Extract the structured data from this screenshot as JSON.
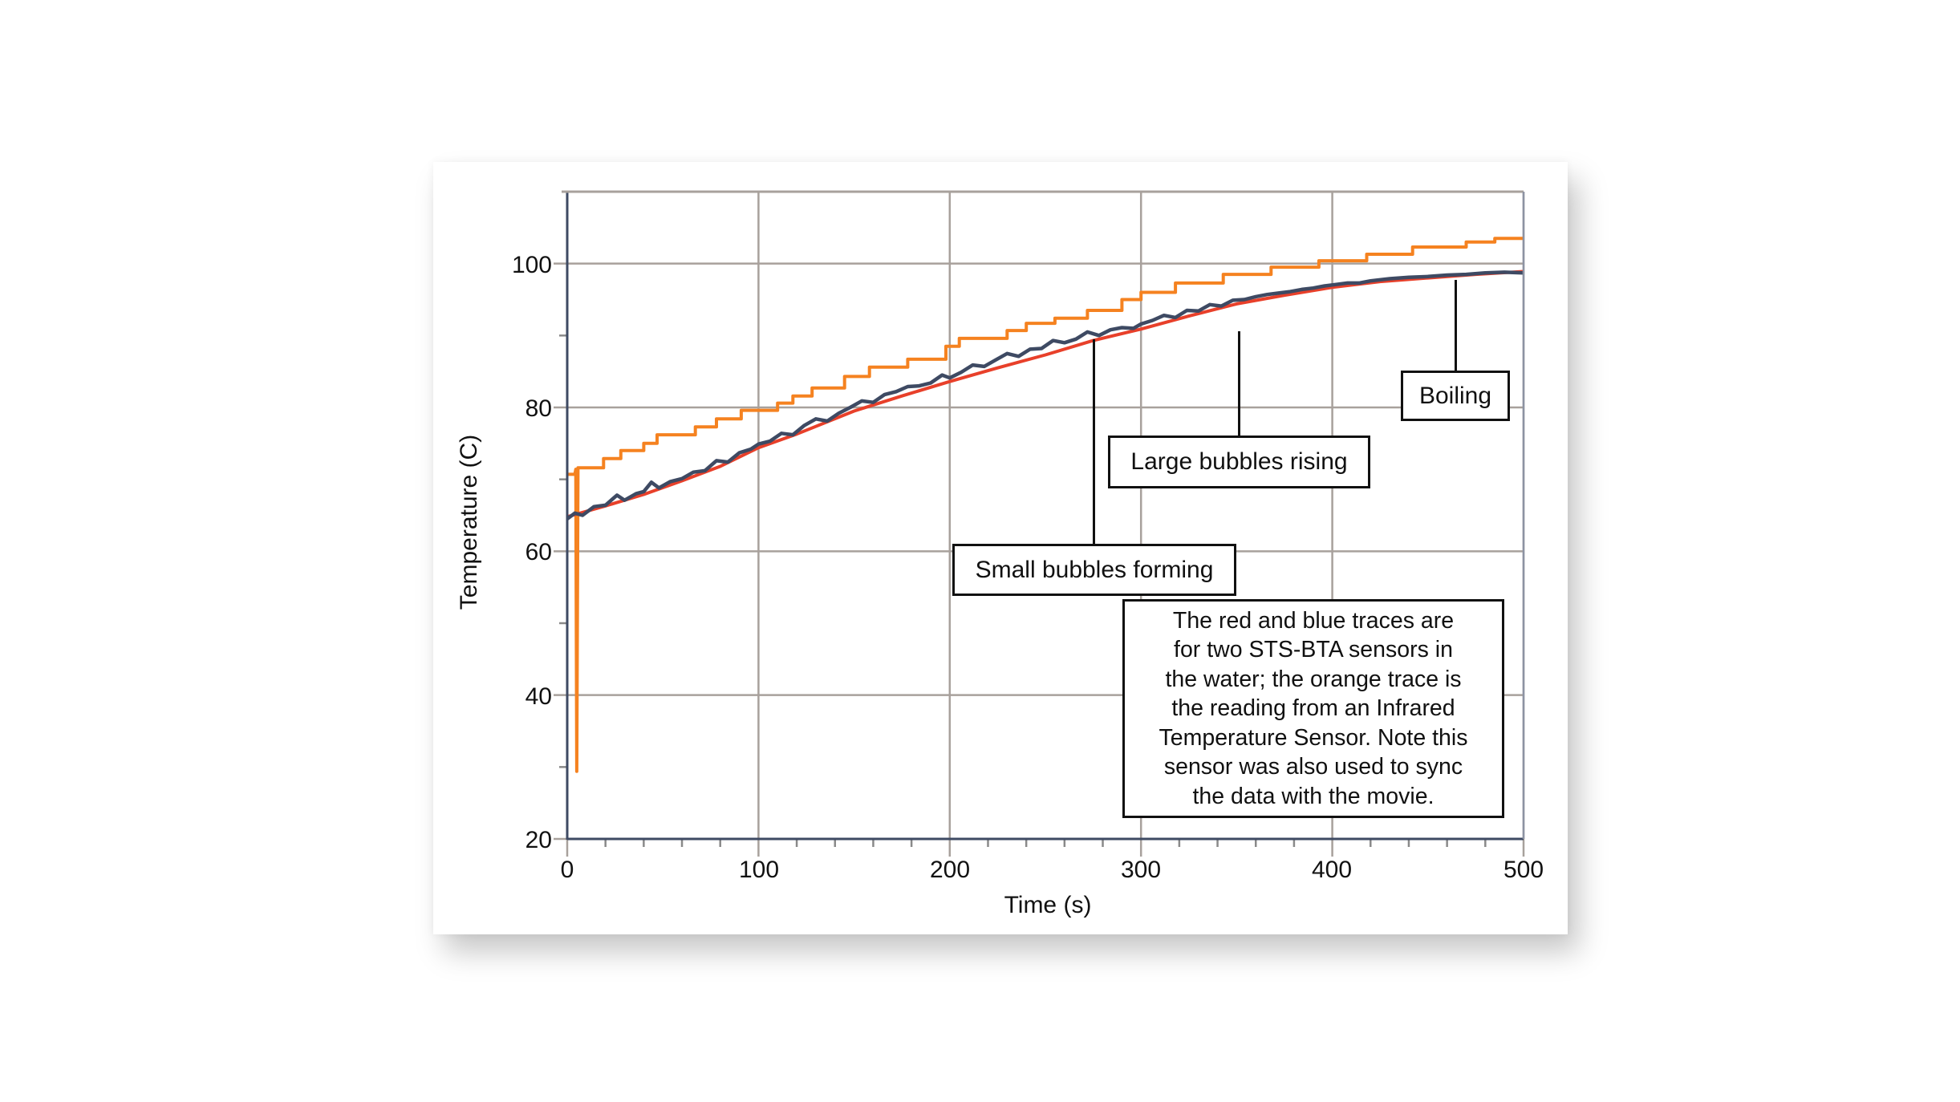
{
  "chart_data": {
    "type": "line",
    "title": "",
    "xlabel": "Time (s)",
    "ylabel": "Temperature (C)",
    "xlim": [
      0,
      500
    ],
    "ylim": [
      20,
      110
    ],
    "x_ticks": [
      0,
      100,
      200,
      300,
      400,
      500
    ],
    "y_ticks": [
      20,
      40,
      60,
      80,
      100
    ],
    "x_minor_step": 20,
    "y_minor_step": 10,
    "grid": true,
    "legend": null,
    "series": [
      {
        "name": "Infrared Temperature Sensor (orange)",
        "color": "#f58220",
        "style": "step",
        "points": [
          [
            0,
            70.7
          ],
          [
            4,
            70.7
          ],
          [
            4.5,
            71.4
          ],
          [
            5,
            29.4
          ],
          [
            5.6,
            71.6
          ],
          [
            19,
            71.6
          ],
          [
            19,
            72.9
          ],
          [
            28,
            72.9
          ],
          [
            28,
            74.0
          ],
          [
            40,
            74.0
          ],
          [
            40,
            75.0
          ],
          [
            47,
            75.0
          ],
          [
            47,
            76.2
          ],
          [
            67,
            76.2
          ],
          [
            67,
            77.3
          ],
          [
            78,
            77.3
          ],
          [
            78,
            78.4
          ],
          [
            91,
            78.4
          ],
          [
            91,
            79.6
          ],
          [
            110,
            79.6
          ],
          [
            110,
            80.6
          ],
          [
            118,
            80.6
          ],
          [
            118,
            81.6
          ],
          [
            128,
            81.6
          ],
          [
            128,
            82.7
          ],
          [
            145,
            82.7
          ],
          [
            145,
            84.3
          ],
          [
            158,
            84.3
          ],
          [
            158,
            85.6
          ],
          [
            178,
            85.6
          ],
          [
            178,
            86.7
          ],
          [
            198,
            86.7
          ],
          [
            198,
            88.5
          ],
          [
            205,
            88.5
          ],
          [
            205,
            89.6
          ],
          [
            230,
            89.6
          ],
          [
            230,
            90.7
          ],
          [
            240,
            90.7
          ],
          [
            240,
            91.7
          ],
          [
            255,
            91.7
          ],
          [
            255,
            92.4
          ],
          [
            272,
            92.4
          ],
          [
            272,
            93.5
          ],
          [
            290,
            93.5
          ],
          [
            290,
            95.0
          ],
          [
            300,
            95.0
          ],
          [
            300,
            96.0
          ],
          [
            318,
            96.0
          ],
          [
            318,
            97.3
          ],
          [
            343,
            97.3
          ],
          [
            343,
            98.5
          ],
          [
            368,
            98.5
          ],
          [
            368,
            99.5
          ],
          [
            393,
            99.5
          ],
          [
            393,
            100.4
          ],
          [
            418,
            100.4
          ],
          [
            418,
            101.3
          ],
          [
            442,
            101.3
          ],
          [
            442,
            102.3
          ],
          [
            470,
            102.3
          ],
          [
            470,
            103.0
          ],
          [
            485,
            103.0
          ],
          [
            485,
            103.5
          ],
          [
            500,
            103.5
          ]
        ]
      },
      {
        "name": "STS-BTA sensor 1 (red)",
        "color": "#e8402a",
        "style": "line",
        "points": [
          [
            0,
            64.8
          ],
          [
            20,
            66.3
          ],
          [
            40,
            67.9
          ],
          [
            60,
            69.8
          ],
          [
            80,
            71.8
          ],
          [
            100,
            74.4
          ],
          [
            120,
            76.3
          ],
          [
            150,
            79.5
          ],
          [
            175,
            81.6
          ],
          [
            200,
            83.6
          ],
          [
            225,
            85.5
          ],
          [
            250,
            87.3
          ],
          [
            275,
            89.3
          ],
          [
            300,
            90.9
          ],
          [
            325,
            92.7
          ],
          [
            350,
            94.4
          ],
          [
            375,
            95.6
          ],
          [
            400,
            96.7
          ],
          [
            425,
            97.5
          ],
          [
            450,
            98.0
          ],
          [
            475,
            98.5
          ],
          [
            500,
            98.9
          ]
        ]
      },
      {
        "name": "STS-BTA sensor 2 (blue)",
        "color": "#3e4a63",
        "style": "line",
        "points": [
          [
            0,
            64.5
          ],
          [
            4,
            65.3
          ],
          [
            8,
            65.0
          ],
          [
            14,
            66.2
          ],
          [
            20,
            66.4
          ],
          [
            26,
            67.8
          ],
          [
            30,
            67.1
          ],
          [
            36,
            68.0
          ],
          [
            40,
            68.3
          ],
          [
            44,
            69.6
          ],
          [
            48,
            68.8
          ],
          [
            54,
            69.7
          ],
          [
            60,
            70.1
          ],
          [
            66,
            71.0
          ],
          [
            72,
            71.2
          ],
          [
            78,
            72.6
          ],
          [
            84,
            72.4
          ],
          [
            90,
            73.7
          ],
          [
            96,
            74.2
          ],
          [
            100,
            74.9
          ],
          [
            106,
            75.3
          ],
          [
            112,
            76.4
          ],
          [
            118,
            76.2
          ],
          [
            124,
            77.5
          ],
          [
            130,
            78.4
          ],
          [
            136,
            78.1
          ],
          [
            142,
            79.2
          ],
          [
            148,
            80.0
          ],
          [
            154,
            80.9
          ],
          [
            160,
            80.7
          ],
          [
            166,
            81.8
          ],
          [
            172,
            82.2
          ],
          [
            178,
            82.9
          ],
          [
            184,
            83.0
          ],
          [
            190,
            83.4
          ],
          [
            196,
            84.5
          ],
          [
            200,
            84.1
          ],
          [
            206,
            84.9
          ],
          [
            212,
            85.9
          ],
          [
            218,
            85.7
          ],
          [
            224,
            86.6
          ],
          [
            230,
            87.5
          ],
          [
            236,
            87.1
          ],
          [
            242,
            88.1
          ],
          [
            248,
            88.2
          ],
          [
            254,
            89.3
          ],
          [
            260,
            89.0
          ],
          [
            266,
            89.5
          ],
          [
            272,
            90.5
          ],
          [
            278,
            90.0
          ],
          [
            284,
            90.8
          ],
          [
            290,
            91.1
          ],
          [
            296,
            91.0
          ],
          [
            300,
            91.6
          ],
          [
            306,
            92.1
          ],
          [
            312,
            92.8
          ],
          [
            318,
            92.5
          ],
          [
            324,
            93.5
          ],
          [
            330,
            93.4
          ],
          [
            336,
            94.3
          ],
          [
            342,
            94.1
          ],
          [
            348,
            94.9
          ],
          [
            354,
            95.0
          ],
          [
            360,
            95.4
          ],
          [
            366,
            95.7
          ],
          [
            372,
            95.9
          ],
          [
            378,
            96.1
          ],
          [
            384,
            96.4
          ],
          [
            390,
            96.6
          ],
          [
            396,
            96.9
          ],
          [
            402,
            97.1
          ],
          [
            408,
            97.3
          ],
          [
            414,
            97.3
          ],
          [
            420,
            97.6
          ],
          [
            430,
            97.9
          ],
          [
            440,
            98.1
          ],
          [
            450,
            98.2
          ],
          [
            460,
            98.4
          ],
          [
            470,
            98.5
          ],
          [
            480,
            98.7
          ],
          [
            490,
            98.8
          ],
          [
            500,
            98.7
          ]
        ]
      }
    ],
    "annotations": [
      {
        "text": "Boiling",
        "x": 465,
        "y_anchor": 97.9
      },
      {
        "text": "Large bubbles rising",
        "x": 350,
        "y_anchor": 90.6
      },
      {
        "text": "Small bubbles forming",
        "x": 275,
        "y_anchor": 89.8
      },
      {
        "text": "The red and blue traces are for two STS-BTA sensors in the water; the orange trace is the reading from an Infrared Temperature Sensor. Note this sensor was also used to sync the data with the movie."
      }
    ]
  },
  "axes": {
    "x_title": "Time (s)",
    "y_title": "Temperature (C)",
    "x_tick_labels": [
      "0",
      "100",
      "200",
      "300",
      "400",
      "500"
    ],
    "y_tick_labels": [
      "20",
      "40",
      "60",
      "80",
      "100"
    ]
  },
  "labels": {
    "boiling": "Boiling",
    "large_bubbles": "Large bubbles rising",
    "small_bubbles": "Small bubbles forming",
    "note_lines": [
      "The red and blue traces are",
      "for two STS-BTA sensors in",
      "the water; the orange trace is",
      "the reading from an Infrared",
      "Temperature Sensor. Note this",
      "sensor was also used to sync",
      "the data with the movie."
    ]
  },
  "colors": {
    "orange": "#f58220",
    "red": "#e8402a",
    "blue": "#3e4a63",
    "grid": "#a8a19c",
    "axis": "#3e4a63"
  }
}
